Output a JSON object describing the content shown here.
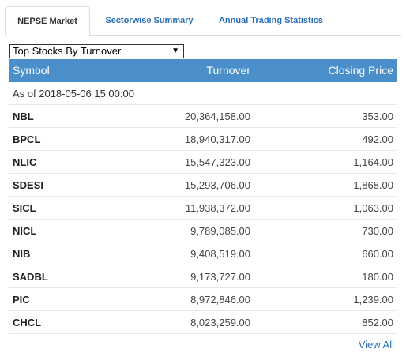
{
  "tabs": [
    {
      "label": "NEPSE Market",
      "active": true
    },
    {
      "label": "Sectorwise Summary",
      "active": false
    },
    {
      "label": "Annual Trading Statistics",
      "active": false
    }
  ],
  "dropdown": {
    "selected": "Top Stocks By Turnover"
  },
  "table": {
    "headers": {
      "symbol": "Symbol",
      "turnover": "Turnover",
      "closing_price": "Closing Price"
    },
    "as_of": "As of 2018-05-06 15:00:00",
    "rows": [
      {
        "symbol": "NBL",
        "turnover": "20,364,158.00",
        "closing_price": "353.00"
      },
      {
        "symbol": "BPCL",
        "turnover": "18,940,317.00",
        "closing_price": "492.00"
      },
      {
        "symbol": "NLIC",
        "turnover": "15,547,323.00",
        "closing_price": "1,164.00"
      },
      {
        "symbol": "SDESI",
        "turnover": "15,293,706.00",
        "closing_price": "1,868.00"
      },
      {
        "symbol": "SICL",
        "turnover": "11,938,372.00",
        "closing_price": "1,063.00"
      },
      {
        "symbol": "NICL",
        "turnover": "9,789,085.00",
        "closing_price": "730.00"
      },
      {
        "symbol": "NIB",
        "turnover": "9,408,519.00",
        "closing_price": "660.00"
      },
      {
        "symbol": "SADBL",
        "turnover": "9,173,727.00",
        "closing_price": "180.00"
      },
      {
        "symbol": "PIC",
        "turnover": "8,972,846.00",
        "closing_price": "1,239.00"
      },
      {
        "symbol": "CHCL",
        "turnover": "8,023,259.00",
        "closing_price": "852.00"
      }
    ]
  },
  "view_all_label": "View All",
  "colors": {
    "header_bg": "#4a8fca",
    "link": "#2a6fb6"
  }
}
